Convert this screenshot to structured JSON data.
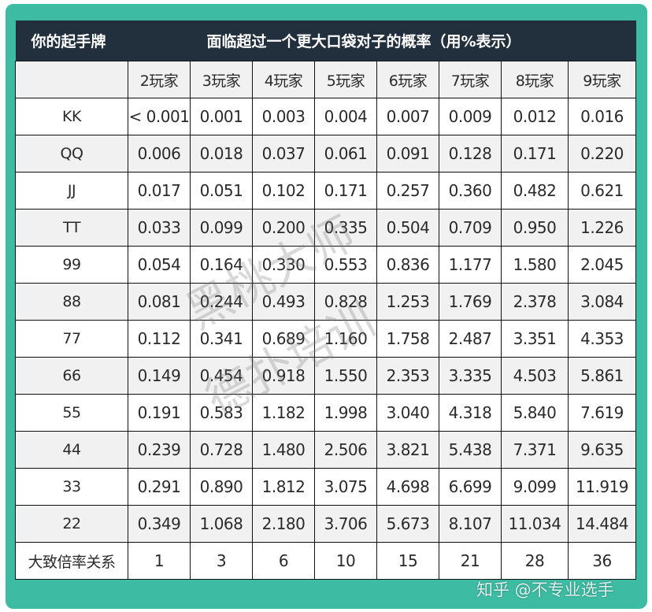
{
  "header": {
    "hand_label": "你的起手牌",
    "title": "面临超过一个更大口袋对子的概率（用%表示）"
  },
  "columns": [
    "",
    "2玩家",
    "3玩家",
    "4玩家",
    "5玩家",
    "6玩家",
    "7玩家",
    "8玩家",
    "9玩家"
  ],
  "rows": [
    {
      "hand": "KK",
      "values": [
        "< 0.001",
        "0.001",
        "0.003",
        "0.004",
        "0.007",
        "0.009",
        "0.012",
        "0.016"
      ]
    },
    {
      "hand": "QQ",
      "values": [
        "0.006",
        "0.018",
        "0.037",
        "0.061",
        "0.091",
        "0.128",
        "0.171",
        "0.220"
      ]
    },
    {
      "hand": "JJ",
      "values": [
        "0.017",
        "0.051",
        "0.102",
        "0.171",
        "0.257",
        "0.360",
        "0.482",
        "0.621"
      ]
    },
    {
      "hand": "TT",
      "values": [
        "0.033",
        "0.099",
        "0.200",
        "0.335",
        "0.504",
        "0.709",
        "0.950",
        "1.226"
      ]
    },
    {
      "hand": "99",
      "values": [
        "0.054",
        "0.164",
        "0.330",
        "0.553",
        "0.836",
        "1.177",
        "1.580",
        "2.045"
      ]
    },
    {
      "hand": "88",
      "values": [
        "0.081",
        "0.244",
        "0.493",
        "0.828",
        "1.253",
        "1.769",
        "2.378",
        "3.084"
      ]
    },
    {
      "hand": "77",
      "values": [
        "0.112",
        "0.341",
        "0.689",
        "1.160",
        "1.758",
        "2.487",
        "3.351",
        "4.353"
      ]
    },
    {
      "hand": "66",
      "values": [
        "0.149",
        "0.454",
        "0.918",
        "1.550",
        "2.353",
        "3.335",
        "4.503",
        "5.861"
      ]
    },
    {
      "hand": "55",
      "values": [
        "0.191",
        "0.583",
        "1.182",
        "1.998",
        "3.040",
        "4.318",
        "5.840",
        "7.619"
      ]
    },
    {
      "hand": "44",
      "values": [
        "0.239",
        "0.728",
        "1.480",
        "2.506",
        "3.821",
        "5.438",
        "7.371",
        "9.635"
      ]
    },
    {
      "hand": "33",
      "values": [
        "0.291",
        "0.890",
        "1.812",
        "3.075",
        "4.698",
        "6.699",
        "9.099",
        "11.919"
      ]
    },
    {
      "hand": "22",
      "values": [
        "0.349",
        "1.068",
        "2.180",
        "3.706",
        "5.673",
        "8.107",
        "11.034",
        "14.484"
      ]
    },
    {
      "hand": "大致倍率关系",
      "values": [
        "1",
        "3",
        "6",
        "10",
        "15",
        "21",
        "28",
        "36"
      ]
    }
  ],
  "watermark": {
    "line1": "黑桃大师",
    "line2": "德扑培训"
  },
  "credit": "知乎 @不专业选手",
  "colors": {
    "frame": "#3dbba3",
    "header_bg": "#222f3d",
    "header_text": "#ffffff",
    "row_alt": "#f1f1f1"
  }
}
